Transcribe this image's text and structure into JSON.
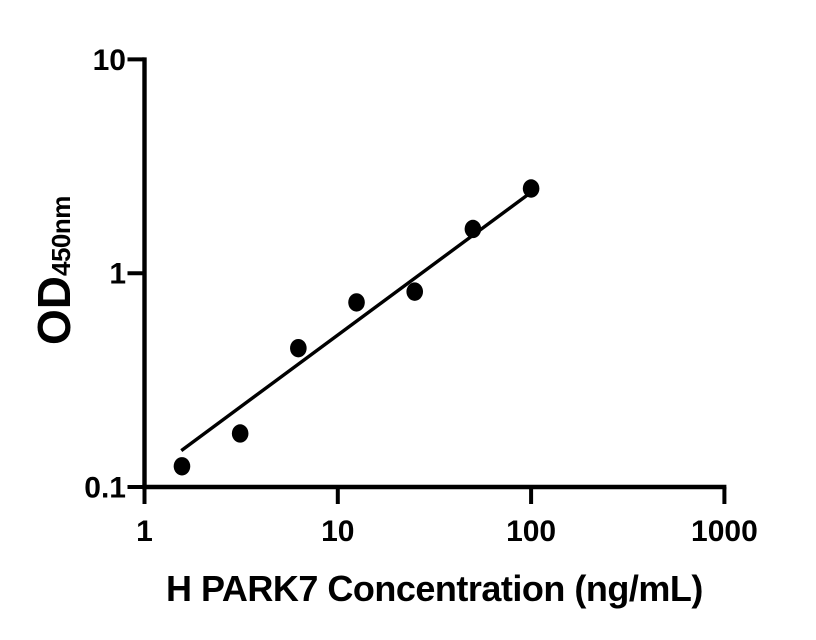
{
  "page": {
    "background": "#ffffff",
    "foreground": "#000000"
  },
  "chart_data": {
    "type": "scatter",
    "title": "",
    "xlabel": "H PARK7 Concentration (ng/mL)",
    "ylabel": "OD",
    "ylabel_subscript": "450nm",
    "x_scale": "log10",
    "y_scale": "log10",
    "xlim": [
      1,
      1000
    ],
    "ylim": [
      0.1,
      10
    ],
    "x_ticks": [
      1,
      10,
      100,
      1000
    ],
    "x_tick_labels": [
      "1",
      "10",
      "100",
      "1000"
    ],
    "y_ticks": [
      10,
      1,
      0.1
    ],
    "y_tick_labels": [
      "10",
      "1",
      "0.1"
    ],
    "grid": false,
    "legend": "none",
    "marker": "filled-circle",
    "marker_color": "#000000",
    "line_color": "#000000",
    "series": [
      {
        "name": "fit-line",
        "type": "line",
        "x": [
          1.55,
          97.5
        ],
        "y": [
          0.148,
          2.35
        ]
      },
      {
        "name": "standard-points",
        "type": "scatter",
        "x": [
          1.5625,
          3.125,
          6.25,
          12.5,
          25,
          50,
          100
        ],
        "y": [
          0.125,
          0.178,
          0.446,
          0.73,
          0.82,
          1.61,
          2.49
        ]
      }
    ]
  }
}
